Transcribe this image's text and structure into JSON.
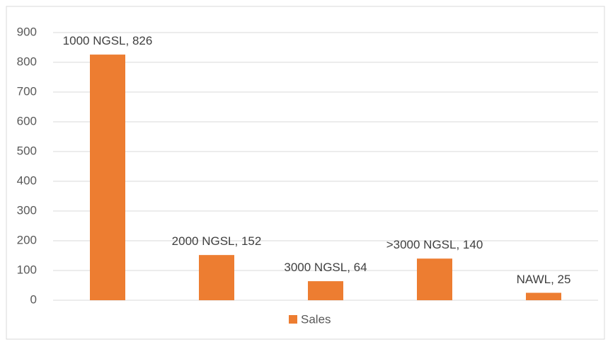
{
  "chart_data": {
    "type": "bar",
    "values": [
      826,
      152,
      64,
      140,
      25
    ],
    "value_labels": [
      "1000 NGSL, 826",
      "2000 NGSL, 152",
      "3000 NGSL, 64",
      ">3000 NGSL, 140",
      "NAWL, 25"
    ],
    "series_name": "Sales",
    "color": "#ed7d31",
    "ylim": [
      0,
      900
    ],
    "yticks": [
      0,
      100,
      200,
      300,
      400,
      500,
      600,
      700,
      800,
      900
    ],
    "grid": true,
    "legend": "bottom"
  }
}
